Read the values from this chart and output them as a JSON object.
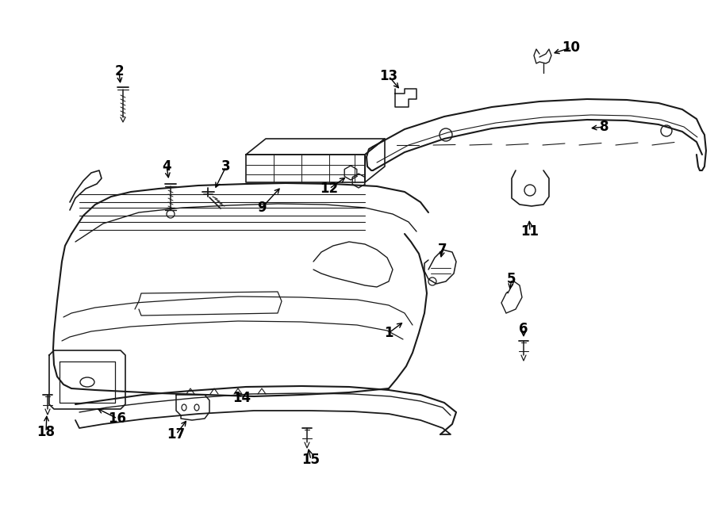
{
  "background_color": "#ffffff",
  "line_color": "#1a1a1a",
  "text_color": "#000000",
  "fig_width": 9.0,
  "fig_height": 6.61
}
